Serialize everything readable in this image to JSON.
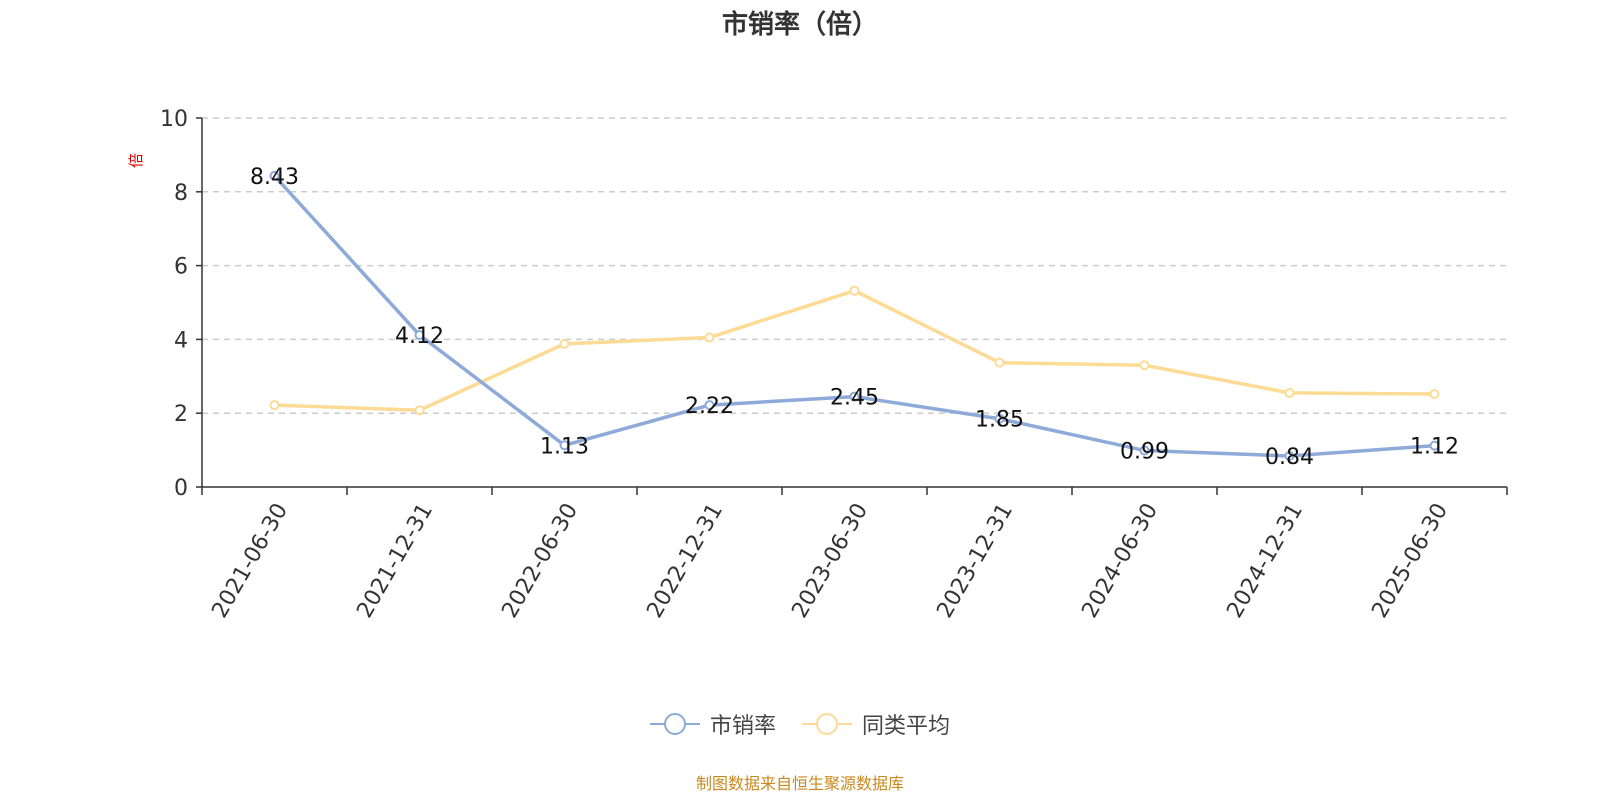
{
  "chart_data": {
    "type": "line",
    "title": "市销率（倍）",
    "ylabel": "倍",
    "ylim": [
      0,
      10
    ],
    "yticks": [
      0,
      2,
      4,
      6,
      8,
      10
    ],
    "grid": true,
    "legend_position": "bottom-center",
    "categories": [
      "2021-06-30",
      "2021-12-31",
      "2022-06-30",
      "2022-12-31",
      "2023-06-30",
      "2023-12-31",
      "2024-06-30",
      "2024-12-31",
      "2025-06-30"
    ],
    "series": [
      {
        "name": "市销率",
        "color": "#8eaad8",
        "values": [
          8.43,
          4.12,
          1.13,
          2.22,
          2.45,
          1.85,
          0.99,
          0.84,
          1.12
        ],
        "labels": [
          "8.43",
          "4.12",
          "1.13",
          "2.22",
          "2.45",
          "1.85",
          "0.99",
          "0.84",
          "1.12"
        ]
      },
      {
        "name": "同类平均",
        "color": "#fddb94",
        "values": [
          2.22,
          2.08,
          3.88,
          4.05,
          5.32,
          3.37,
          3.3,
          2.55,
          2.52
        ]
      }
    ]
  },
  "footer": {
    "source": "制图数据来自恒生聚源数据库"
  }
}
